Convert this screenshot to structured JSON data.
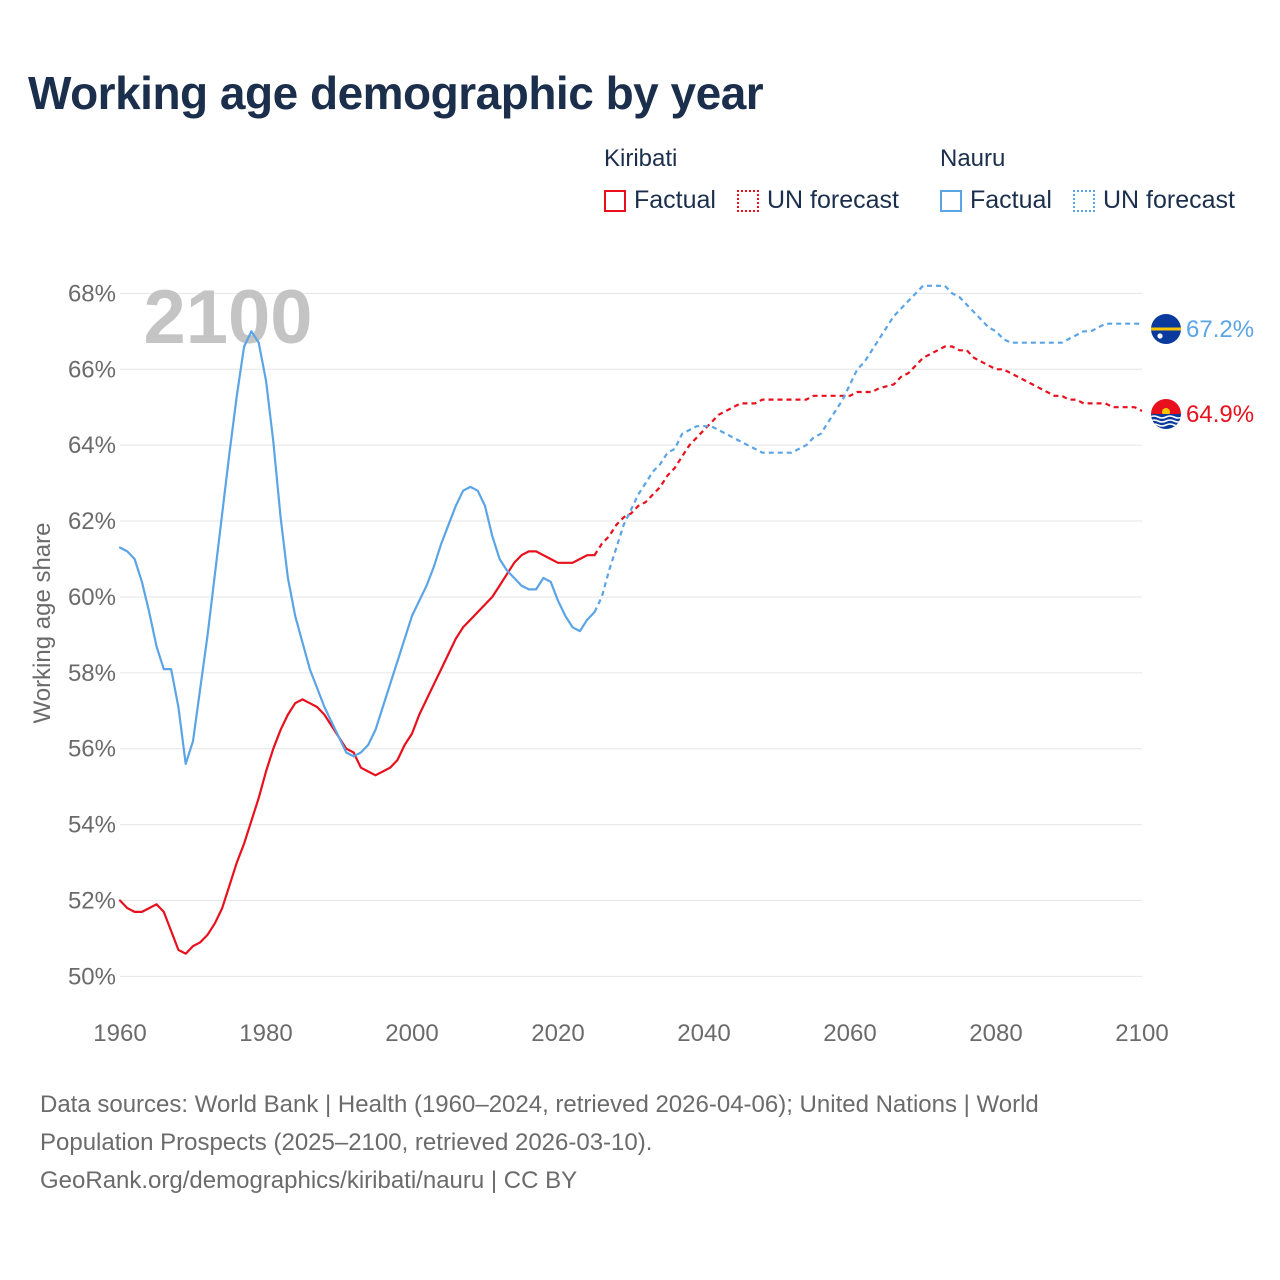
{
  "title": "Working age demographic by year",
  "year_watermark": "2100",
  "legend": {
    "kiribati": {
      "name": "Kiribati",
      "factual": "Factual",
      "forecast": "UN forecast"
    },
    "nauru": {
      "name": "Nauru",
      "factual": "Factual",
      "forecast": "UN forecast"
    }
  },
  "colors": {
    "kiribati": "#e8101c",
    "nauru": "#5ba4e5",
    "grid": "#e6e6e6",
    "axis_text": "#6b6b6b",
    "watermark": "#c4c4c4"
  },
  "footer": {
    "line1": "Data sources: World Bank | Health (1960–2024, retrieved 2026-04-06); United Nations | World",
    "line2": "Population Prospects (2025–2100, retrieved 2026-03-10).",
    "line3": "GeoRank.org/demographics/kiribati/nauru | CC BY"
  },
  "chart_data": {
    "type": "line",
    "ylabel": "Working age share",
    "xlim": [
      1960,
      2100
    ],
    "ylim": [
      49.3,
      68.8
    ],
    "xticks": [
      1960,
      1980,
      2000,
      2020,
      2040,
      2060,
      2080,
      2100
    ],
    "xtick_labels": [
      "1960",
      "1980",
      "2000",
      "2020",
      "2040",
      "2060",
      "2080",
      "2100"
    ],
    "yticks": [
      50,
      52,
      54,
      56,
      58,
      60,
      62,
      64,
      66,
      68
    ],
    "ytick_labels": [
      "50%",
      "52%",
      "54%",
      "56%",
      "58%",
      "60%",
      "62%",
      "64%",
      "66%",
      "68%"
    ],
    "end_labels": {
      "kiribati": "64.9%",
      "nauru": "67.2%"
    },
    "series": [
      {
        "name": "Kiribati",
        "key": "kiribati",
        "kind": "factual",
        "points": [
          [
            1960,
            52.0
          ],
          [
            1961,
            51.8
          ],
          [
            1962,
            51.7
          ],
          [
            1963,
            51.7
          ],
          [
            1964,
            51.8
          ],
          [
            1965,
            51.9
          ],
          [
            1966,
            51.7
          ],
          [
            1967,
            51.2
          ],
          [
            1968,
            50.7
          ],
          [
            1969,
            50.6
          ],
          [
            1970,
            50.8
          ],
          [
            1971,
            50.9
          ],
          [
            1972,
            51.1
          ],
          [
            1973,
            51.4
          ],
          [
            1974,
            51.8
          ],
          [
            1975,
            52.4
          ],
          [
            1976,
            53.0
          ],
          [
            1977,
            53.5
          ],
          [
            1978,
            54.1
          ],
          [
            1979,
            54.7
          ],
          [
            1980,
            55.4
          ],
          [
            1981,
            56.0
          ],
          [
            1982,
            56.5
          ],
          [
            1983,
            56.9
          ],
          [
            1984,
            57.2
          ],
          [
            1985,
            57.3
          ],
          [
            1986,
            57.2
          ],
          [
            1987,
            57.1
          ],
          [
            1988,
            56.9
          ],
          [
            1989,
            56.6
          ],
          [
            1990,
            56.3
          ],
          [
            1991,
            56.0
          ],
          [
            1992,
            55.9
          ],
          [
            1993,
            55.5
          ],
          [
            1994,
            55.4
          ],
          [
            1995,
            55.3
          ],
          [
            1996,
            55.4
          ],
          [
            1997,
            55.5
          ],
          [
            1998,
            55.7
          ],
          [
            1999,
            56.1
          ],
          [
            2000,
            56.4
          ],
          [
            2001,
            56.9
          ],
          [
            2002,
            57.3
          ],
          [
            2003,
            57.7
          ],
          [
            2004,
            58.1
          ],
          [
            2005,
            58.5
          ],
          [
            2006,
            58.9
          ],
          [
            2007,
            59.2
          ],
          [
            2008,
            59.4
          ],
          [
            2009,
            59.6
          ],
          [
            2010,
            59.8
          ],
          [
            2011,
            60.0
          ],
          [
            2012,
            60.3
          ],
          [
            2013,
            60.6
          ],
          [
            2014,
            60.9
          ],
          [
            2015,
            61.1
          ],
          [
            2016,
            61.2
          ],
          [
            2017,
            61.2
          ],
          [
            2018,
            61.1
          ],
          [
            2019,
            61.0
          ],
          [
            2020,
            60.9
          ],
          [
            2021,
            60.9
          ],
          [
            2022,
            60.9
          ],
          [
            2023,
            61.0
          ],
          [
            2024,
            61.1
          ],
          [
            2025,
            61.1
          ]
        ]
      },
      {
        "name": "Kiribati",
        "key": "kiribati",
        "kind": "forecast",
        "points": [
          [
            2025,
            61.1
          ],
          [
            2026,
            61.4
          ],
          [
            2027,
            61.6
          ],
          [
            2028,
            61.9
          ],
          [
            2029,
            62.1
          ],
          [
            2030,
            62.2
          ],
          [
            2031,
            62.4
          ],
          [
            2032,
            62.5
          ],
          [
            2033,
            62.7
          ],
          [
            2034,
            62.9
          ],
          [
            2035,
            63.2
          ],
          [
            2036,
            63.4
          ],
          [
            2037,
            63.7
          ],
          [
            2038,
            64.0
          ],
          [
            2039,
            64.2
          ],
          [
            2040,
            64.4
          ],
          [
            2041,
            64.6
          ],
          [
            2042,
            64.8
          ],
          [
            2043,
            64.9
          ],
          [
            2044,
            65.0
          ],
          [
            2045,
            65.1
          ],
          [
            2046,
            65.1
          ],
          [
            2047,
            65.1
          ],
          [
            2048,
            65.2
          ],
          [
            2050,
            65.2
          ],
          [
            2052,
            65.2
          ],
          [
            2054,
            65.2
          ],
          [
            2055,
            65.3
          ],
          [
            2058,
            65.3
          ],
          [
            2060,
            65.3
          ],
          [
            2061,
            65.4
          ],
          [
            2063,
            65.4
          ],
          [
            2064,
            65.5
          ],
          [
            2066,
            65.6
          ],
          [
            2067,
            65.8
          ],
          [
            2068,
            65.9
          ],
          [
            2069,
            66.1
          ],
          [
            2070,
            66.3
          ],
          [
            2071,
            66.4
          ],
          [
            2072,
            66.5
          ],
          [
            2073,
            66.6
          ],
          [
            2074,
            66.6
          ],
          [
            2075,
            66.5
          ],
          [
            2076,
            66.5
          ],
          [
            2077,
            66.3
          ],
          [
            2078,
            66.2
          ],
          [
            2079,
            66.1
          ],
          [
            2080,
            66.0
          ],
          [
            2081,
            66.0
          ],
          [
            2082,
            65.9
          ],
          [
            2083,
            65.8
          ],
          [
            2084,
            65.7
          ],
          [
            2085,
            65.6
          ],
          [
            2086,
            65.5
          ],
          [
            2087,
            65.4
          ],
          [
            2088,
            65.3
          ],
          [
            2089,
            65.3
          ],
          [
            2090,
            65.2
          ],
          [
            2091,
            65.2
          ],
          [
            2092,
            65.1
          ],
          [
            2093,
            65.1
          ],
          [
            2095,
            65.1
          ],
          [
            2096,
            65.0
          ],
          [
            2099,
            65.0
          ],
          [
            2100,
            64.9
          ]
        ]
      },
      {
        "name": "Nauru",
        "key": "nauru",
        "kind": "factual",
        "points": [
          [
            1960,
            61.3
          ],
          [
            1961,
            61.2
          ],
          [
            1962,
            61.0
          ],
          [
            1963,
            60.4
          ],
          [
            1964,
            59.6
          ],
          [
            1965,
            58.7
          ],
          [
            1966,
            58.1
          ],
          [
            1967,
            58.1
          ],
          [
            1968,
            57.1
          ],
          [
            1969,
            55.6
          ],
          [
            1970,
            56.2
          ],
          [
            1971,
            57.6
          ],
          [
            1972,
            59.0
          ],
          [
            1973,
            60.6
          ],
          [
            1974,
            62.2
          ],
          [
            1975,
            63.8
          ],
          [
            1976,
            65.3
          ],
          [
            1977,
            66.6
          ],
          [
            1978,
            67.0
          ],
          [
            1979,
            66.7
          ],
          [
            1980,
            65.7
          ],
          [
            1981,
            64.1
          ],
          [
            1982,
            62.1
          ],
          [
            1983,
            60.5
          ],
          [
            1984,
            59.5
          ],
          [
            1985,
            58.8
          ],
          [
            1986,
            58.1
          ],
          [
            1987,
            57.6
          ],
          [
            1988,
            57.1
          ],
          [
            1989,
            56.7
          ],
          [
            1990,
            56.3
          ],
          [
            1991,
            55.9
          ],
          [
            1992,
            55.8
          ],
          [
            1993,
            55.9
          ],
          [
            1994,
            56.1
          ],
          [
            1995,
            56.5
          ],
          [
            1996,
            57.1
          ],
          [
            1997,
            57.7
          ],
          [
            1998,
            58.3
          ],
          [
            1999,
            58.9
          ],
          [
            2000,
            59.5
          ],
          [
            2001,
            59.9
          ],
          [
            2002,
            60.3
          ],
          [
            2003,
            60.8
          ],
          [
            2004,
            61.4
          ],
          [
            2005,
            61.9
          ],
          [
            2006,
            62.4
          ],
          [
            2007,
            62.8
          ],
          [
            2008,
            62.9
          ],
          [
            2009,
            62.8
          ],
          [
            2010,
            62.4
          ],
          [
            2011,
            61.6
          ],
          [
            2012,
            61.0
          ],
          [
            2013,
            60.7
          ],
          [
            2014,
            60.5
          ],
          [
            2015,
            60.3
          ],
          [
            2016,
            60.2
          ],
          [
            2017,
            60.2
          ],
          [
            2018,
            60.5
          ],
          [
            2019,
            60.4
          ],
          [
            2020,
            59.9
          ],
          [
            2021,
            59.5
          ],
          [
            2022,
            59.2
          ],
          [
            2023,
            59.1
          ],
          [
            2024,
            59.4
          ],
          [
            2025,
            59.6
          ]
        ]
      },
      {
        "name": "Nauru",
        "key": "nauru",
        "kind": "forecast",
        "points": [
          [
            2025,
            59.6
          ],
          [
            2026,
            60.0
          ],
          [
            2027,
            60.7
          ],
          [
            2028,
            61.3
          ],
          [
            2029,
            61.9
          ],
          [
            2030,
            62.3
          ],
          [
            2031,
            62.7
          ],
          [
            2032,
            63.0
          ],
          [
            2033,
            63.3
          ],
          [
            2034,
            63.5
          ],
          [
            2035,
            63.8
          ],
          [
            2036,
            63.9
          ],
          [
            2037,
            64.3
          ],
          [
            2038,
            64.4
          ],
          [
            2039,
            64.5
          ],
          [
            2040,
            64.5
          ],
          [
            2041,
            64.5
          ],
          [
            2042,
            64.4
          ],
          [
            2043,
            64.3
          ],
          [
            2044,
            64.2
          ],
          [
            2045,
            64.1
          ],
          [
            2046,
            64.0
          ],
          [
            2047,
            63.9
          ],
          [
            2048,
            63.8
          ],
          [
            2050,
            63.8
          ],
          [
            2052,
            63.8
          ],
          [
            2053,
            63.9
          ],
          [
            2054,
            64.0
          ],
          [
            2055,
            64.2
          ],
          [
            2056,
            64.3
          ],
          [
            2057,
            64.6
          ],
          [
            2058,
            64.9
          ],
          [
            2059,
            65.2
          ],
          [
            2060,
            65.6
          ],
          [
            2061,
            66.0
          ],
          [
            2062,
            66.2
          ],
          [
            2063,
            66.5
          ],
          [
            2064,
            66.8
          ],
          [
            2065,
            67.1
          ],
          [
            2066,
            67.4
          ],
          [
            2067,
            67.6
          ],
          [
            2068,
            67.8
          ],
          [
            2069,
            68.0
          ],
          [
            2070,
            68.2
          ],
          [
            2071,
            68.2
          ],
          [
            2072,
            68.2
          ],
          [
            2073,
            68.2
          ],
          [
            2074,
            68.0
          ],
          [
            2075,
            67.9
          ],
          [
            2076,
            67.7
          ],
          [
            2077,
            67.5
          ],
          [
            2078,
            67.3
          ],
          [
            2079,
            67.1
          ],
          [
            2080,
            67.0
          ],
          [
            2081,
            66.8
          ],
          [
            2082,
            66.7
          ],
          [
            2085,
            66.7
          ],
          [
            2089,
            66.7
          ],
          [
            2090,
            66.8
          ],
          [
            2091,
            66.9
          ],
          [
            2092,
            67.0
          ],
          [
            2093,
            67.0
          ],
          [
            2094,
            67.1
          ],
          [
            2095,
            67.2
          ],
          [
            2100,
            67.2
          ]
        ]
      }
    ]
  }
}
